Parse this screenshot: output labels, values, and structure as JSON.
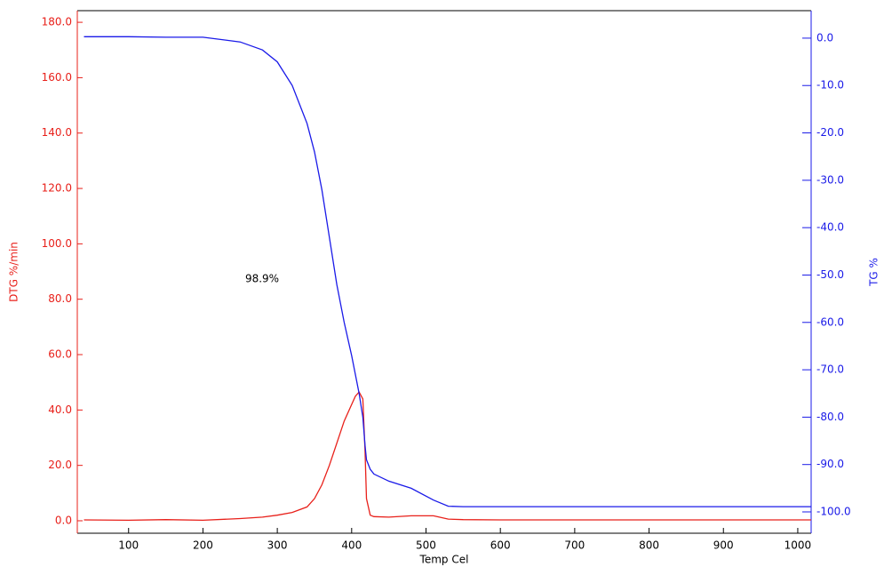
{
  "chart_data": {
    "type": "line",
    "x_label": "Temp Cel",
    "y_label": "DTG %/min",
    "y2_label": "TG %",
    "annotation": "98.9%",
    "x": [
      40,
      100,
      150,
      200,
      250,
      280,
      300,
      320,
      340,
      350,
      360,
      370,
      380,
      390,
      400,
      405,
      410,
      415,
      418,
      420,
      425,
      430,
      450,
      480,
      510,
      530,
      550,
      600,
      700,
      800,
      900,
      1018
    ],
    "series": [
      {
        "name": "DTG",
        "color": "#e8201a",
        "values": [
          0.3,
          0.2,
          0.4,
          0.2,
          0.8,
          1.3,
          2,
          3,
          5,
          8,
          13,
          20,
          28,
          36,
          42,
          45,
          46.5,
          44,
          25,
          8,
          2,
          1.5,
          1.3,
          1.8,
          1.8,
          0.6,
          0.4,
          0.3,
          0.3,
          0.3,
          0.3,
          0.3
        ]
      },
      {
        "name": "TG",
        "color": "#1a1ae8",
        "axis": "y2",
        "values": [
          0.3,
          0.3,
          0.2,
          0.2,
          -0.8,
          -2.5,
          -5,
          -10,
          -18,
          -24,
          -32,
          -42,
          -52,
          -60,
          -67,
          -71,
          -75,
          -80,
          -86,
          -89,
          -91,
          -92,
          -93.5,
          -95,
          -97.5,
          -98.8,
          -98.9,
          -98.9,
          -98.9,
          -98.9,
          -98.9,
          -98.9
        ]
      }
    ],
    "xlim": [
      31,
      1018
    ],
    "xticks": [
      100,
      200,
      300,
      400,
      500,
      600,
      700,
      800,
      900,
      1000
    ],
    "ylim": [
      -4.5,
      184.2
    ],
    "yticks": [
      {
        "value": 0,
        "label": "0.0"
      },
      {
        "value": 20,
        "label": "20.0"
      },
      {
        "value": 40,
        "label": "40.0"
      },
      {
        "value": 60,
        "label": "60.0"
      },
      {
        "value": 80,
        "label": "80.0"
      },
      {
        "value": 100,
        "label": "100.0"
      },
      {
        "value": 120,
        "label": "120.0"
      },
      {
        "value": 140,
        "label": "140.0"
      },
      {
        "value": 160,
        "label": "160.0"
      },
      {
        "value": 180,
        "label": "180.0"
      }
    ],
    "y2lim": [
      -104.5,
      5.8
    ],
    "y2ticks": [
      {
        "value": 0,
        "label": "0.0"
      },
      {
        "value": -10,
        "label": "-10.0"
      },
      {
        "value": -20,
        "label": "-20.0"
      },
      {
        "value": -30,
        "label": "-30.0"
      },
      {
        "value": -40,
        "label": "-40.0"
      },
      {
        "value": -50,
        "label": "-50.0"
      },
      {
        "value": -60,
        "label": "-60.0"
      },
      {
        "value": -70,
        "label": "-70.0"
      },
      {
        "value": -80,
        "label": "-80.0"
      },
      {
        "value": -90,
        "label": "-90.0"
      },
      {
        "value": -100,
        "label": "-100.0"
      }
    ]
  }
}
